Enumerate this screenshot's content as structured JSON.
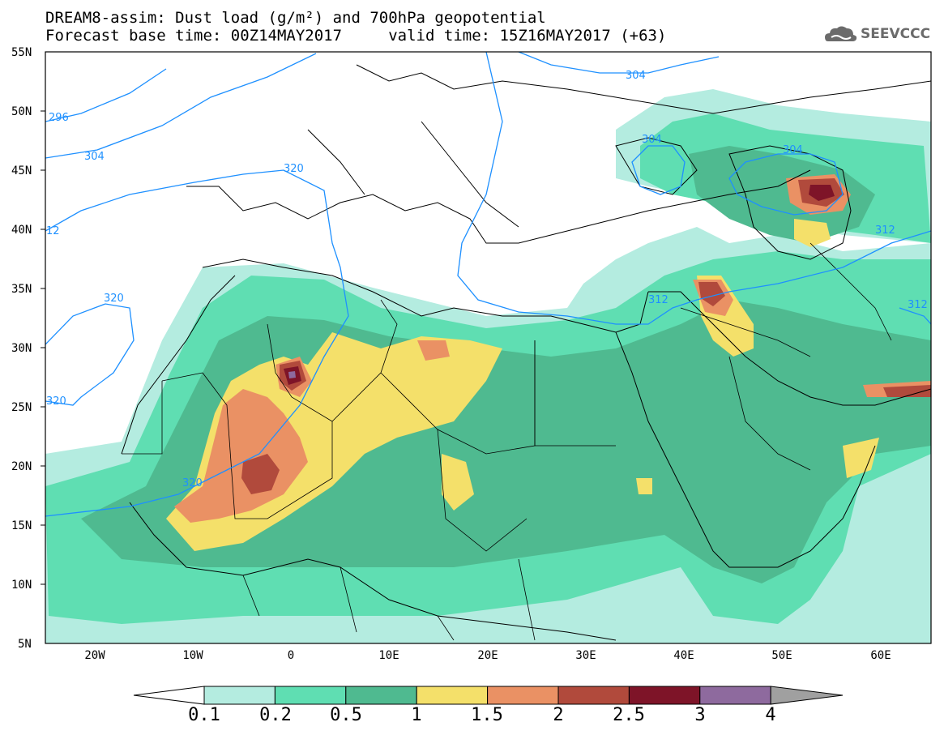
{
  "title": {
    "line1": "DREAM8-assim: Dust load (g/m²) and 700hPa geopotential",
    "line2": "Forecast base time: 00Z14MAY2017     valid time: 15Z16MAY2017 (+63)"
  },
  "logo": {
    "text": "SEEVCCC",
    "icon": "cloud-icon"
  },
  "axes": {
    "lat_labels": [
      "55N",
      "50N",
      "45N",
      "40N",
      "35N",
      "30N",
      "25N",
      "20N",
      "15N",
      "10N",
      "5N"
    ],
    "lon_labels": [
      "20W",
      "10W",
      "0",
      "10E",
      "20E",
      "30E",
      "40E",
      "50E",
      "60E"
    ]
  },
  "contour_labels": [
    "296",
    "304",
    "12",
    "320",
    "320",
    "320",
    "320",
    "304",
    "304",
    "304",
    "312",
    "312",
    "312"
  ],
  "colorbar": {
    "ticks": [
      "0.1",
      "0.2",
      "0.5",
      "1",
      "1.5",
      "2",
      "2.5",
      "3",
      "4"
    ],
    "colors": [
      "#b4ece0",
      "#5fdeb2",
      "#4fba90",
      "#f4e06a",
      "#ea9164",
      "#b14a3c",
      "#7e1428",
      "#8e6a9e",
      "#a0a0a0"
    ]
  },
  "palette": {
    "c1": "#b4ece0",
    "c2": "#5fdeb2",
    "c3": "#4fba90",
    "c4": "#f4e06a",
    "c5": "#ea9164",
    "c6": "#b14a3c",
    "c7": "#7e1428",
    "c8": "#8e6a9e",
    "contour": "#1e90ff"
  }
}
